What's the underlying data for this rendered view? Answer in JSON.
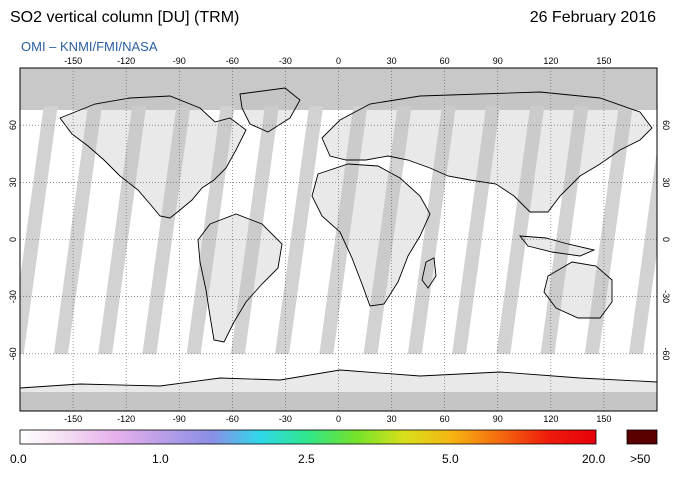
{
  "header": {
    "title": "SO2 vertical column [DU] (TRM)",
    "date": "26 February 2016",
    "source": "OMI  –  KNMI/FMI/NASA"
  },
  "map": {
    "projection": "equirectangular",
    "lon_range": [
      -180,
      180
    ],
    "lat_range": [
      -90,
      90
    ],
    "lon_ticks": [
      "-150",
      "-120",
      "-90",
      "-60",
      "-30",
      "0",
      "30",
      "60",
      "90",
      "120",
      "150"
    ],
    "lat_ticks": [
      "60",
      "30",
      "0",
      "-30",
      "-60"
    ],
    "colors": {
      "no_data": "#c8c8c8",
      "coastline": "#000000",
      "gridline": "#555555"
    }
  },
  "colorbar": {
    "labels": [
      "0.0",
      "1.0",
      "2.5",
      "5.0",
      "20.0",
      ">50"
    ],
    "colors": [
      "#ffffff",
      "#f4dcf2",
      "#e6b0ec",
      "#b89ee8",
      "#8a8ee6",
      "#2fd8ea",
      "#30e68a",
      "#74e22a",
      "#d8e01a",
      "#f6b412",
      "#f46a10",
      "#ee1c0c",
      "#e6000a"
    ],
    "overflow_color": "#5a0000"
  }
}
